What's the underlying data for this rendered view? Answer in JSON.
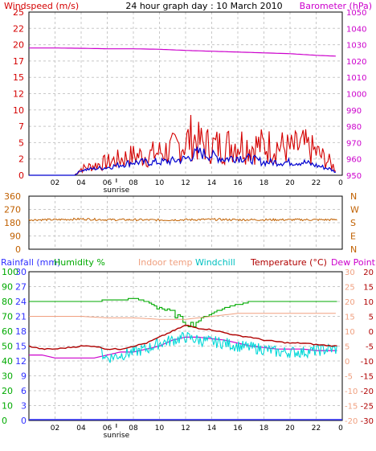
{
  "title": "24 hour graph day : 10 March 2010",
  "colors": {
    "wind": "#d40000",
    "gust": "#0000d0",
    "baro": "#cc00cc",
    "dir": "#c06000",
    "hum": "#00aa00",
    "indoor": "#f0a080",
    "chill": "#00d8d8",
    "temp": "#b00000",
    "dew": "#cc00cc",
    "rain": "#3030ff",
    "grid": "#c8c8c8",
    "frame": "#000000"
  },
  "chart_data": [
    {
      "type": "line",
      "labels": {
        "left": "Windspeed (m/s)",
        "right": "Barometer (hPa)"
      },
      "x_ticks": [
        "02",
        "04",
        "06",
        "08",
        "10",
        "12",
        "14",
        "16",
        "18",
        "20",
        "22"
      ],
      "x_end_tick": "0",
      "sunrise_label": "sunrise",
      "left_ticks": [
        "0",
        "2",
        "5",
        "7",
        "10",
        "12",
        "15",
        "17",
        "20",
        "22",
        "25"
      ],
      "right_ticks": [
        "950",
        "960",
        "970",
        "980",
        "990",
        "1000",
        "1010",
        "1020",
        "1030",
        "1040",
        "1050"
      ],
      "ylim_left": [
        0,
        25
      ],
      "ylim_right": [
        950,
        1050
      ],
      "series": [
        {
          "key": "baro",
          "axis": "right",
          "x": [
            0,
            2,
            4,
            6,
            8,
            10,
            12,
            14,
            16,
            18,
            20,
            22,
            23.5
          ],
          "y": [
            1028,
            1028,
            1027.8,
            1027.5,
            1027.5,
            1027.2,
            1026.5,
            1026,
            1025.5,
            1025,
            1024.5,
            1023.5,
            1023
          ]
        },
        {
          "key": "wind",
          "axis": "left",
          "x": [
            0,
            3.5,
            4,
            5,
            6,
            7,
            8,
            9,
            10,
            11,
            12,
            12.5,
            13,
            14,
            15,
            16,
            17,
            18,
            19,
            20,
            21,
            22,
            23,
            23.5
          ],
          "y": [
            0,
            0,
            1,
            1.5,
            2,
            2.5,
            3,
            3,
            3.5,
            4,
            5,
            6,
            5,
            4.5,
            4.5,
            5,
            4.5,
            4.5,
            4.5,
            4,
            4.5,
            3.5,
            2,
            1
          ]
        },
        {
          "key": "gust",
          "axis": "left",
          "x": [
            0,
            3.5,
            4,
            5,
            6,
            7,
            8,
            9,
            10,
            11,
            12,
            13,
            14,
            15,
            16,
            17,
            18,
            19,
            20,
            21,
            22,
            23,
            23.5
          ],
          "y": [
            0,
            0,
            0.8,
            1,
            1.2,
            1.6,
            2,
            2,
            2,
            2.2,
            2.5,
            3.5,
            3,
            2.5,
            2.8,
            2.5,
            2,
            2,
            2,
            2,
            1.5,
            1,
            0.5
          ]
        }
      ]
    },
    {
      "type": "line",
      "left_ticks": [
        "0",
        "90",
        "180",
        "270",
        "360"
      ],
      "right_ticks": [
        "N",
        "E",
        "S",
        "W",
        "N"
      ],
      "ylim": [
        0,
        360
      ],
      "series": [
        {
          "key": "dir",
          "x": [
            0,
            2,
            4,
            6,
            8,
            10,
            12,
            14,
            16,
            18,
            20,
            22,
            23.5
          ],
          "y": [
            200,
            200,
            205,
            200,
            200,
            198,
            200,
            202,
            200,
            200,
            200,
            200,
            200
          ]
        }
      ]
    },
    {
      "type": "line",
      "labels": {
        "rain": "Rainfall (mm)",
        "humidity": "Humidity %",
        "indoor": "Indoor temp",
        "windchill": "Windchill",
        "temp": "Temperature (°C)",
        "dew": "Dew Point"
      },
      "x_ticks": [
        "02",
        "04",
        "06",
        "08",
        "10",
        "12",
        "14",
        "16",
        "18",
        "20",
        "22"
      ],
      "x_end_tick": "0",
      "sunrise_label": "sunrise",
      "rain_ticks": [
        "0",
        "3",
        "6",
        "9",
        "12",
        "15",
        "18",
        "21",
        "24",
        "27",
        "30"
      ],
      "hum_ticks": [
        "0",
        "10",
        "20",
        "30",
        "40",
        "50",
        "60",
        "70",
        "80",
        "90",
        "100"
      ],
      "temp_ticks_left": [
        "-20",
        "-15",
        "-10",
        "-5",
        "0",
        "5",
        "10",
        "15",
        "20",
        "25",
        "30"
      ],
      "temp_ticks_right": [
        "-30",
        "-25",
        "-20",
        "-15",
        "-10",
        "-5",
        "0",
        "5",
        "10",
        "15",
        "20"
      ],
      "ylim_temp_right": [
        -30,
        20
      ],
      "series": [
        {
          "key": "hum",
          "x": [
            0,
            4,
            5,
            6,
            7,
            8,
            9,
            10,
            11,
            12,
            12.5,
            13,
            14,
            15,
            16,
            17,
            18,
            19,
            20,
            21,
            22,
            23.5
          ],
          "y": [
            80,
            80,
            80,
            81,
            81,
            82,
            80,
            76,
            72,
            66,
            64,
            68,
            72,
            76,
            78,
            80,
            80,
            80,
            80,
            80,
            80,
            80
          ]
        },
        {
          "key": "indoor",
          "x": [
            0,
            4,
            6,
            8,
            10,
            12,
            14,
            16,
            18,
            20,
            22,
            23.5
          ],
          "y": [
            5,
            5,
            4.5,
            4.5,
            4,
            4,
            5,
            6,
            6,
            6,
            6,
            6
          ]
        },
        {
          "key": "temp",
          "x": [
            0,
            1,
            2,
            3,
            4,
            5,
            6,
            7,
            8,
            9,
            10,
            11,
            12,
            13,
            14,
            15,
            16,
            17,
            18,
            19,
            20,
            21,
            22,
            23.5
          ],
          "y": [
            -5,
            -6,
            -6,
            -5.5,
            -5,
            -5,
            -6,
            -6,
            -5,
            -4,
            -2,
            0,
            2,
            1,
            0.5,
            -0.5,
            -1.5,
            -2,
            -3,
            -3.5,
            -4,
            -4,
            -4.5,
            -5
          ]
        },
        {
          "key": "dew",
          "x": [
            0,
            1,
            2,
            3,
            4,
            5,
            6,
            7,
            8,
            9,
            10,
            11,
            12,
            13,
            14,
            15,
            16,
            17,
            18,
            19,
            20,
            21,
            22,
            23.5
          ],
          "y": [
            -8,
            -8,
            -9,
            -9,
            -9,
            -9,
            -8,
            -7,
            -7,
            -6,
            -5,
            -3,
            -2,
            -2,
            -2.5,
            -3,
            -4,
            -5,
            -5.5,
            -6,
            -6,
            -6,
            -6.5,
            -6.5
          ]
        },
        {
          "key": "chill",
          "x": [
            5.5,
            6,
            7,
            8,
            9,
            10,
            11,
            12,
            13,
            14,
            15,
            16,
            17,
            18,
            19,
            20,
            21,
            22,
            23,
            23.5
          ],
          "y": [
            -7,
            -9,
            -8,
            -7,
            -6,
            -4,
            -3,
            -2,
            -3,
            -3.5,
            -4,
            -5,
            -5.5,
            -6,
            -7,
            -7,
            -7,
            -6.5,
            -6,
            -6
          ]
        }
      ]
    }
  ]
}
